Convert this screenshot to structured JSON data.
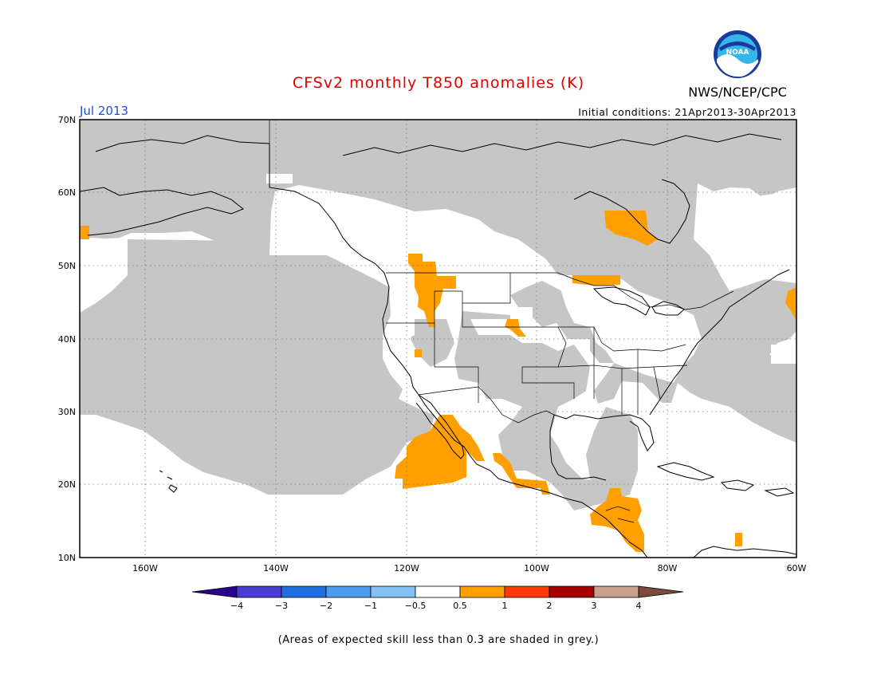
{
  "title": "CFSv2 monthly T850 anomalies (K)",
  "period": "Jul 2013",
  "agency": "NWS/NCEP/CPC",
  "logo_text": "NOAA",
  "initial_conditions": "Initial conditions: 21Apr2013-30Apr2013",
  "lat_labels": [
    "70N",
    "60N",
    "50N",
    "40N",
    "30N",
    "20N",
    "10N"
  ],
  "lon_labels": [
    "160W",
    "140W",
    "120W",
    "100W",
    "80W",
    "60W"
  ],
  "colorbar": {
    "ticks": [
      "−4",
      "−3",
      "−2",
      "−1",
      "−0.5",
      "0.5",
      "1",
      "2",
      "3",
      "4"
    ],
    "colors": [
      "#2a008f",
      "#4a3bd1",
      "#1f6fe0",
      "#4a9cf0",
      "#84c1f7",
      "#ffffff",
      "#ffa000",
      "#ff3a0a",
      "#a60000",
      "#c8a090",
      "#7a4a3a"
    ]
  },
  "colors": {
    "skill_grey": "#c6c6c6",
    "positive_anomaly": "#ffa000"
  },
  "note": "(Areas of expected skill less than 0.3 are shaded in grey.)"
}
